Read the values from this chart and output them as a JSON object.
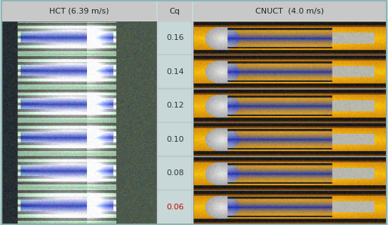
{
  "title_left": "HCT (6.39 m/s)",
  "title_right": "CNUCT  (4.0 m/s)",
  "title_middle": "Cq",
  "cq_values": [
    "0.16",
    "0.14",
    "0.12",
    "0.10",
    "0.08",
    "0.06"
  ],
  "cq_last_color": "#cc0000",
  "cq_normal_color": "#333333",
  "bg_color": "#c8d8d8",
  "header_bg": "#c8c8c8",
  "border_color": "#80b0b0",
  "figsize": [
    5.44,
    3.16
  ],
  "dpi": 100,
  "n_rows": 6
}
